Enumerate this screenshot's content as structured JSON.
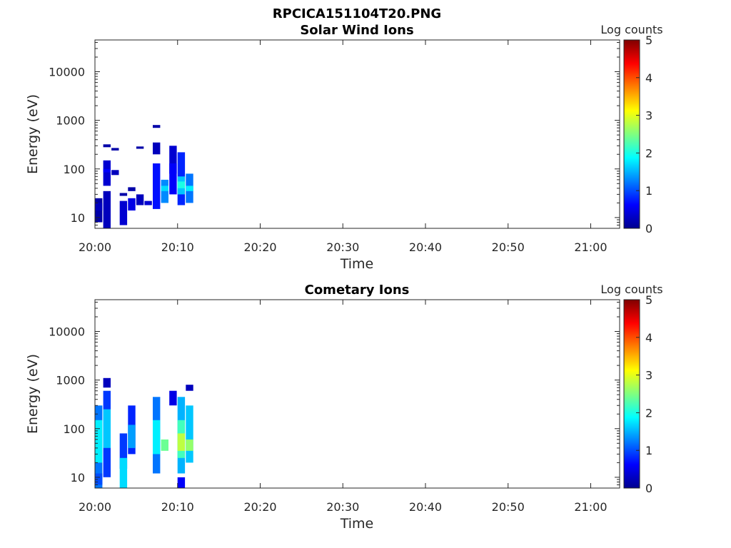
{
  "figure": {
    "title": "RPCICA151104T20.PNG"
  },
  "chart_data": [
    {
      "type": "heatmap",
      "title": "Solar Wind Ions",
      "xlabel": "Time",
      "ylabel": "Energy (eV)",
      "x_tick_labels": [
        "20:00",
        "20:10",
        "20:20",
        "20:30",
        "20:40",
        "20:50",
        "21:00"
      ],
      "y_tick_labels": [
        "10",
        "100",
        "1000",
        "10000"
      ],
      "y_scale": "log",
      "ylim": [
        6,
        45000
      ],
      "xlim_minutes_after_2000": [
        0,
        63.5
      ],
      "colorbar": {
        "label": "Log counts",
        "min": 0,
        "max": 5,
        "ticks": [
          "0",
          "1",
          "2",
          "3",
          "4",
          "5"
        ],
        "colormap": "jet"
      },
      "cells": [
        {
          "t": "20:00",
          "energy_ev": [
            8,
            25
          ],
          "log_counts": 0.2
        },
        {
          "t": "20:00",
          "energy_ev": [
            14,
            20
          ],
          "log_counts": 0.3
        },
        {
          "t": "20:01",
          "energy_ev": [
            6,
            35
          ],
          "log_counts": 0.3
        },
        {
          "t": "20:01",
          "energy_ev": [
            45,
            150
          ],
          "log_counts": 0.4
        },
        {
          "t": "20:01",
          "energy_ev": [
            280,
            320
          ],
          "log_counts": 0.2
        },
        {
          "t": "20:01",
          "energy_ev": [
            85,
            100
          ],
          "log_counts": 0.6
        },
        {
          "t": "20:02",
          "energy_ev": [
            75,
            95
          ],
          "log_counts": 0.3
        },
        {
          "t": "20:02",
          "energy_ev": [
            240,
            270
          ],
          "log_counts": 0.2
        },
        {
          "t": "20:03",
          "energy_ev": [
            28,
            32
          ],
          "log_counts": 0.2
        },
        {
          "t": "20:03",
          "energy_ev": [
            7,
            22
          ],
          "log_counts": 0.4
        },
        {
          "t": "20:04",
          "energy_ev": [
            14,
            25
          ],
          "log_counts": 0.5
        },
        {
          "t": "20:04",
          "energy_ev": [
            35,
            42
          ],
          "log_counts": 0.2
        },
        {
          "t": "20:05",
          "energy_ev": [
            18,
            30
          ],
          "log_counts": 0.3
        },
        {
          "t": "20:05",
          "energy_ev": [
            260,
            290
          ],
          "log_counts": 0.2
        },
        {
          "t": "20:06",
          "energy_ev": [
            18,
            22
          ],
          "log_counts": 0.4
        },
        {
          "t": "20:07",
          "energy_ev": [
            15,
            130
          ],
          "log_counts": 0.7
        },
        {
          "t": "20:07",
          "energy_ev": [
            700,
            800
          ],
          "log_counts": 0.2
        },
        {
          "t": "20:07",
          "energy_ev": [
            200,
            350
          ],
          "log_counts": 0.3
        },
        {
          "t": "20:08",
          "energy_ev": [
            20,
            60
          ],
          "log_counts": 1.3
        },
        {
          "t": "20:08",
          "energy_ev": [
            35,
            45
          ],
          "log_counts": 1.7
        },
        {
          "t": "20:09",
          "energy_ev": [
            80,
            300
          ],
          "log_counts": 0.4
        },
        {
          "t": "20:09",
          "energy_ev": [
            30,
            130
          ],
          "log_counts": 0.6
        },
        {
          "t": "20:10",
          "energy_ev": [
            18,
            220
          ],
          "log_counts": 0.8
        },
        {
          "t": "20:10",
          "energy_ev": [
            30,
            70
          ],
          "log_counts": 1.6
        },
        {
          "t": "20:10",
          "energy_ev": [
            40,
            55
          ],
          "log_counts": 2.0
        },
        {
          "t": "20:11",
          "energy_ev": [
            20,
            80
          ],
          "log_counts": 1.2
        },
        {
          "t": "20:11",
          "energy_ev": [
            35,
            45
          ],
          "log_counts": 1.8
        }
      ]
    },
    {
      "type": "heatmap",
      "title": "Cometary Ions",
      "xlabel": "Time",
      "ylabel": "Energy (eV)",
      "x_tick_labels": [
        "20:00",
        "20:10",
        "20:20",
        "20:30",
        "20:40",
        "20:50",
        "21:00"
      ],
      "y_tick_labels": [
        "10",
        "100",
        "1000",
        "10000"
      ],
      "y_scale": "log",
      "ylim": [
        6,
        45000
      ],
      "xlim_minutes_after_2000": [
        0,
        63.5
      ],
      "colorbar": {
        "label": "Log counts",
        "min": 0,
        "max": 5,
        "ticks": [
          "0",
          "1",
          "2",
          "3",
          "4",
          "5"
        ],
        "colormap": "jet"
      },
      "cells": [
        {
          "t": "20:00",
          "energy_ev": [
            6,
            300
          ],
          "log_counts": 1.2
        },
        {
          "t": "20:00",
          "energy_ev": [
            20,
            150
          ],
          "log_counts": 1.8
        },
        {
          "t": "20:00",
          "energy_ev": [
            7,
            12
          ],
          "log_counts": 1.0
        },
        {
          "t": "20:01",
          "energy_ev": [
            10,
            600
          ],
          "log_counts": 0.9
        },
        {
          "t": "20:01",
          "energy_ev": [
            40,
            250
          ],
          "log_counts": 1.6
        },
        {
          "t": "20:01",
          "energy_ev": [
            700,
            1100
          ],
          "log_counts": 0.3
        },
        {
          "t": "20:03",
          "energy_ev": [
            15,
            80
          ],
          "log_counts": 0.9
        },
        {
          "t": "20:03",
          "energy_ev": [
            6,
            25
          ],
          "log_counts": 1.7
        },
        {
          "t": "20:04",
          "energy_ev": [
            30,
            300
          ],
          "log_counts": 0.8
        },
        {
          "t": "20:04",
          "energy_ev": [
            40,
            120
          ],
          "log_counts": 1.4
        },
        {
          "t": "20:07",
          "energy_ev": [
            12,
            450
          ],
          "log_counts": 1.2
        },
        {
          "t": "20:07",
          "energy_ev": [
            30,
            150
          ],
          "log_counts": 1.8
        },
        {
          "t": "20:08",
          "energy_ev": [
            35,
            60
          ],
          "log_counts": 2.4
        },
        {
          "t": "20:09",
          "energy_ev": [
            300,
            600
          ],
          "log_counts": 0.5
        },
        {
          "t": "20:10",
          "energy_ev": [
            12,
            450
          ],
          "log_counts": 1.5
        },
        {
          "t": "20:10",
          "energy_ev": [
            25,
            150
          ],
          "log_counts": 2.2
        },
        {
          "t": "20:10",
          "energy_ev": [
            35,
            80
          ],
          "log_counts": 2.8
        },
        {
          "t": "20:10",
          "energy_ev": [
            6,
            10
          ],
          "log_counts": 0.6
        },
        {
          "t": "20:11",
          "energy_ev": [
            20,
            300
          ],
          "log_counts": 1.6
        },
        {
          "t": "20:11",
          "energy_ev": [
            35,
            60
          ],
          "log_counts": 2.6
        },
        {
          "t": "20:11",
          "energy_ev": [
            600,
            800
          ],
          "log_counts": 0.3
        }
      ]
    }
  ]
}
